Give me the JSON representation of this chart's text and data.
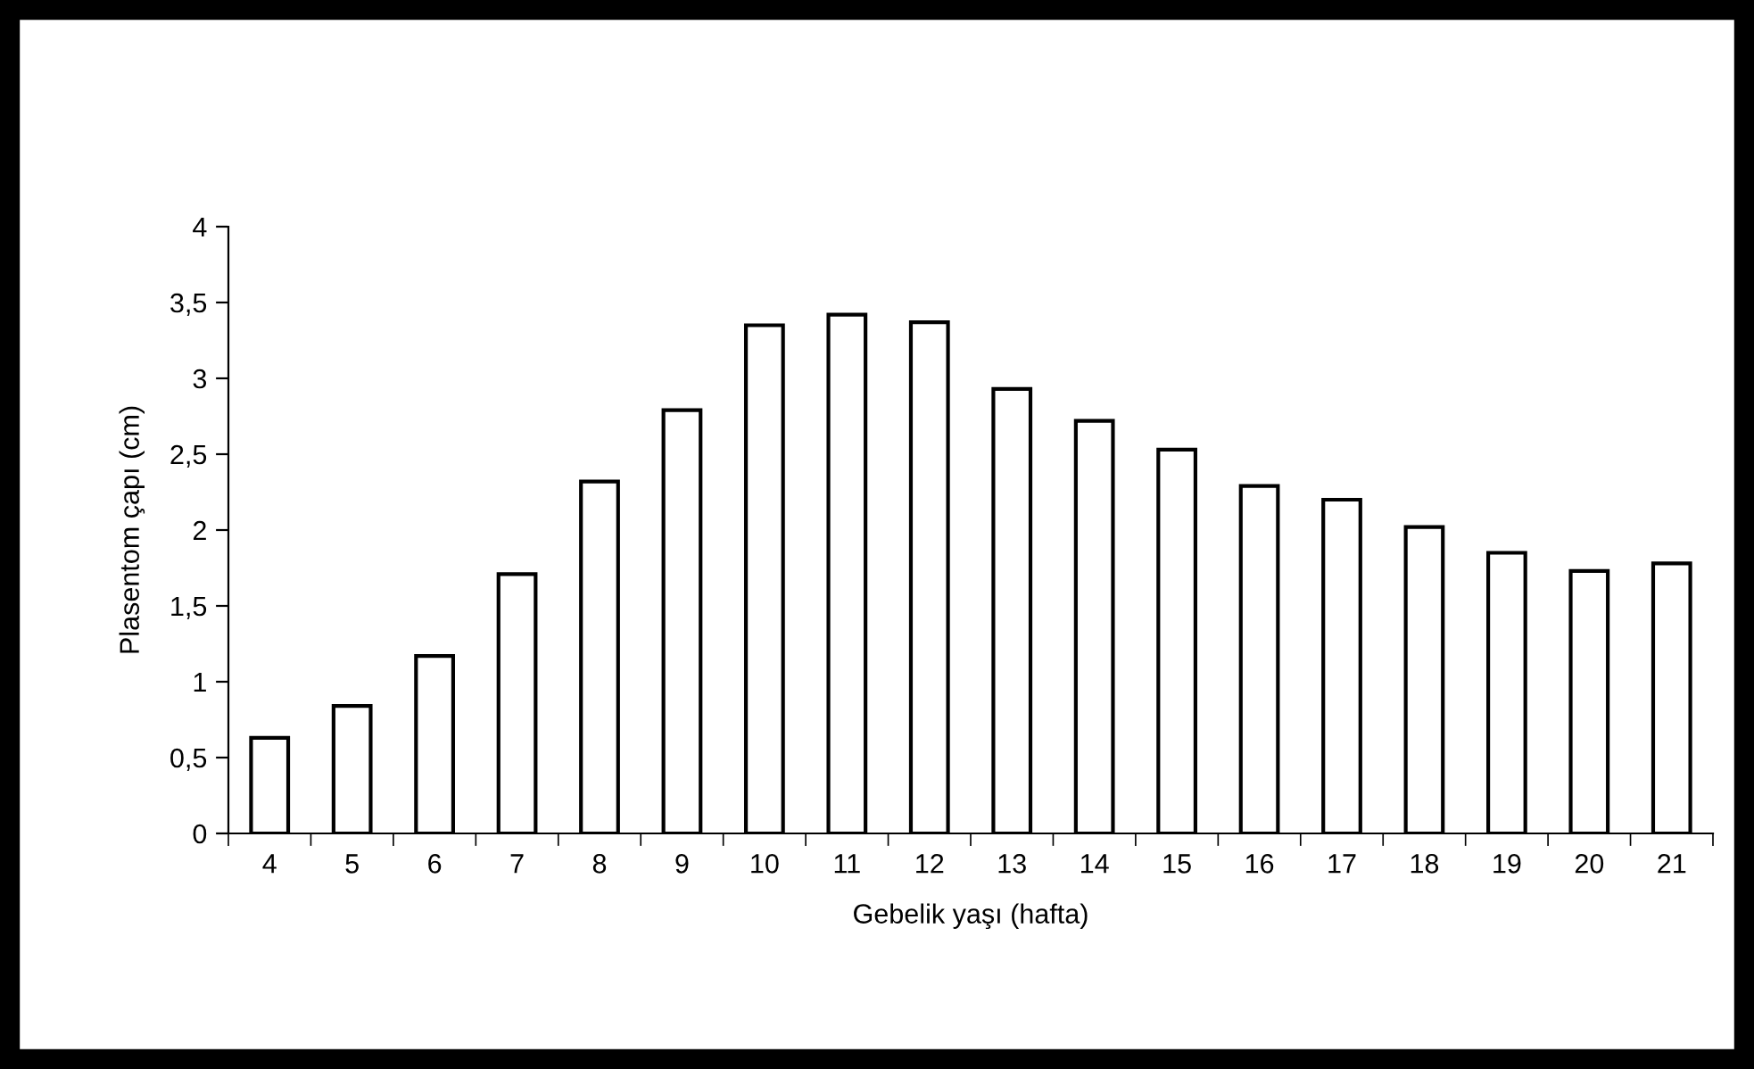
{
  "chart_data": {
    "type": "bar",
    "xlabel": "Gebelik yaşı (hafta)",
    "ylabel": "Plasentom çapı (cm)",
    "categories": [
      "4",
      "5",
      "6",
      "7",
      "8",
      "9",
      "10",
      "11",
      "12",
      "13",
      "14",
      "15",
      "16",
      "17",
      "18",
      "19",
      "20",
      "21"
    ],
    "values": [
      0.63,
      0.84,
      1.17,
      1.71,
      2.32,
      2.79,
      3.35,
      3.42,
      3.37,
      2.93,
      2.72,
      2.53,
      2.29,
      2.2,
      2.02,
      1.85,
      1.73,
      1.78
    ],
    "color": "#ffffff",
    "ylim": [
      0,
      4
    ],
    "yticks": [
      0,
      {
        "value": 0.5,
        "label": "0,5"
      },
      1,
      {
        "value": 1.5,
        "label": "1,5"
      },
      2,
      {
        "value": 2.5,
        "label": "2,5"
      },
      3,
      {
        "value": 3.5,
        "label": "3,5"
      },
      4
    ],
    "grid": false,
    "legend": false
  }
}
